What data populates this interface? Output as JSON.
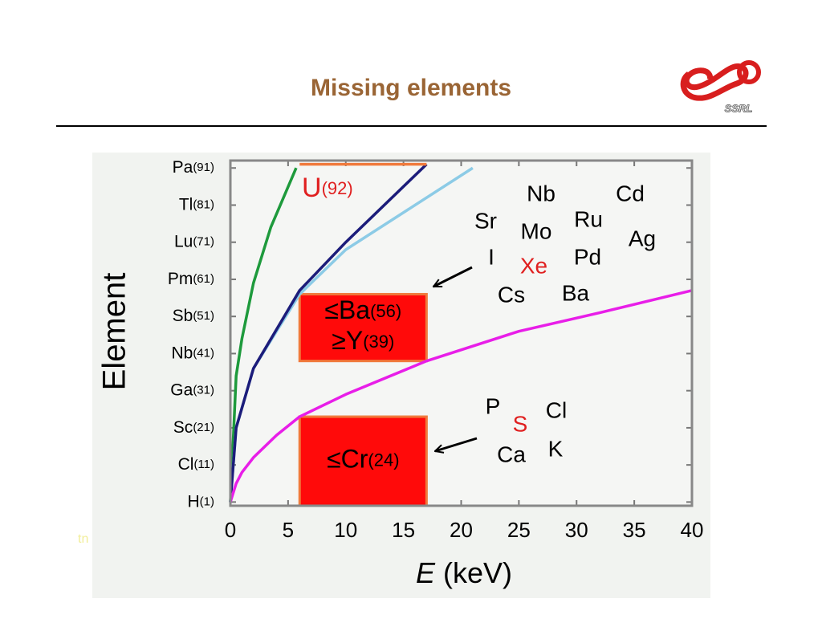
{
  "header": {
    "title": "Missing elements",
    "logo_text": "SSRL"
  },
  "footer_fragment": "tn",
  "chart_data": {
    "type": "line",
    "ylabel": "Element",
    "xlabel": {
      "variable": "E",
      "unit": "(keV)"
    },
    "xlim": [
      0,
      40
    ],
    "xticks": [
      0,
      5,
      10,
      15,
      20,
      25,
      30,
      35,
      40
    ],
    "ylim": [
      0,
      93
    ],
    "yticks": [
      {
        "value": 1,
        "label": "H(1)"
      },
      {
        "value": 11,
        "label": "Cl(11)"
      },
      {
        "value": 21,
        "label": "Sc(21)"
      },
      {
        "value": 31,
        "label": "Ga(31)"
      },
      {
        "value": 41,
        "label": "Nb(41)"
      },
      {
        "value": 51,
        "label": "Sb(51)"
      },
      {
        "value": 61,
        "label": "Pm(61)"
      },
      {
        "value": 71,
        "label": "Lu(71)"
      },
      {
        "value": 81,
        "label": "Tl(81)"
      },
      {
        "value": 91,
        "label": "Pa(91)"
      }
    ],
    "series": [
      {
        "color": "#1e9a3c",
        "x": [
          0,
          0.5,
          1,
          2,
          3.5,
          5.7
        ],
        "values": [
          1,
          35,
          45,
          60,
          75,
          91
        ]
      },
      {
        "color": "#8ccbe6",
        "x": [
          0,
          0.5,
          2,
          6,
          10,
          15,
          21
        ],
        "values": [
          1,
          21,
          37,
          57,
          69,
          79,
          91
        ]
      },
      {
        "color": "#1c1c7a",
        "x": [
          0,
          0.5,
          2,
          6,
          10,
          17
        ],
        "values": [
          1,
          21,
          37,
          58,
          71,
          92
        ]
      },
      {
        "color": "#e81ee8",
        "x": [
          0,
          0.5,
          1,
          2,
          4,
          6,
          10,
          17,
          25,
          32,
          40
        ],
        "values": [
          1,
          6,
          9,
          13,
          19,
          24,
          30,
          39,
          47,
          52,
          58
        ]
      },
      {
        "color": "#f07a3c",
        "x": [
          6,
          17
        ],
        "values": [
          92,
          92
        ]
      }
    ],
    "u_label": {
      "text": "U(92)",
      "color": "#e02020"
    },
    "regions": [
      {
        "x": [
          6,
          17
        ],
        "y": [
          39,
          57
        ],
        "lines": [
          "≤Ba(56)",
          "≥Y(39)"
        ],
        "color": "#ff0a0a"
      },
      {
        "x": [
          6,
          17
        ],
        "y": [
          0,
          24
        ],
        "lines": [
          "≤Cr(24)"
        ],
        "color": "#ff0a0a"
      }
    ],
    "element_labels": [
      {
        "text": "Nb",
        "color": "#000000"
      },
      {
        "text": "Cd",
        "color": "#000000"
      },
      {
        "text": "Sr",
        "color": "#000000"
      },
      {
        "text": "Ru",
        "color": "#000000"
      },
      {
        "text": "Mo",
        "color": "#000000"
      },
      {
        "text": "Ag",
        "color": "#000000"
      },
      {
        "text": "I",
        "color": "#000000"
      },
      {
        "text": "Xe",
        "color": "#e02020"
      },
      {
        "text": "Pd",
        "color": "#000000"
      },
      {
        "text": "Cs",
        "color": "#000000"
      },
      {
        "text": "Ba",
        "color": "#000000"
      },
      {
        "text": "P",
        "color": "#000000"
      },
      {
        "text": "Cl",
        "color": "#000000"
      },
      {
        "text": "S",
        "color": "#e02020"
      },
      {
        "text": "Ca",
        "color": "#000000"
      },
      {
        "text": "K",
        "color": "#000000"
      }
    ]
  }
}
